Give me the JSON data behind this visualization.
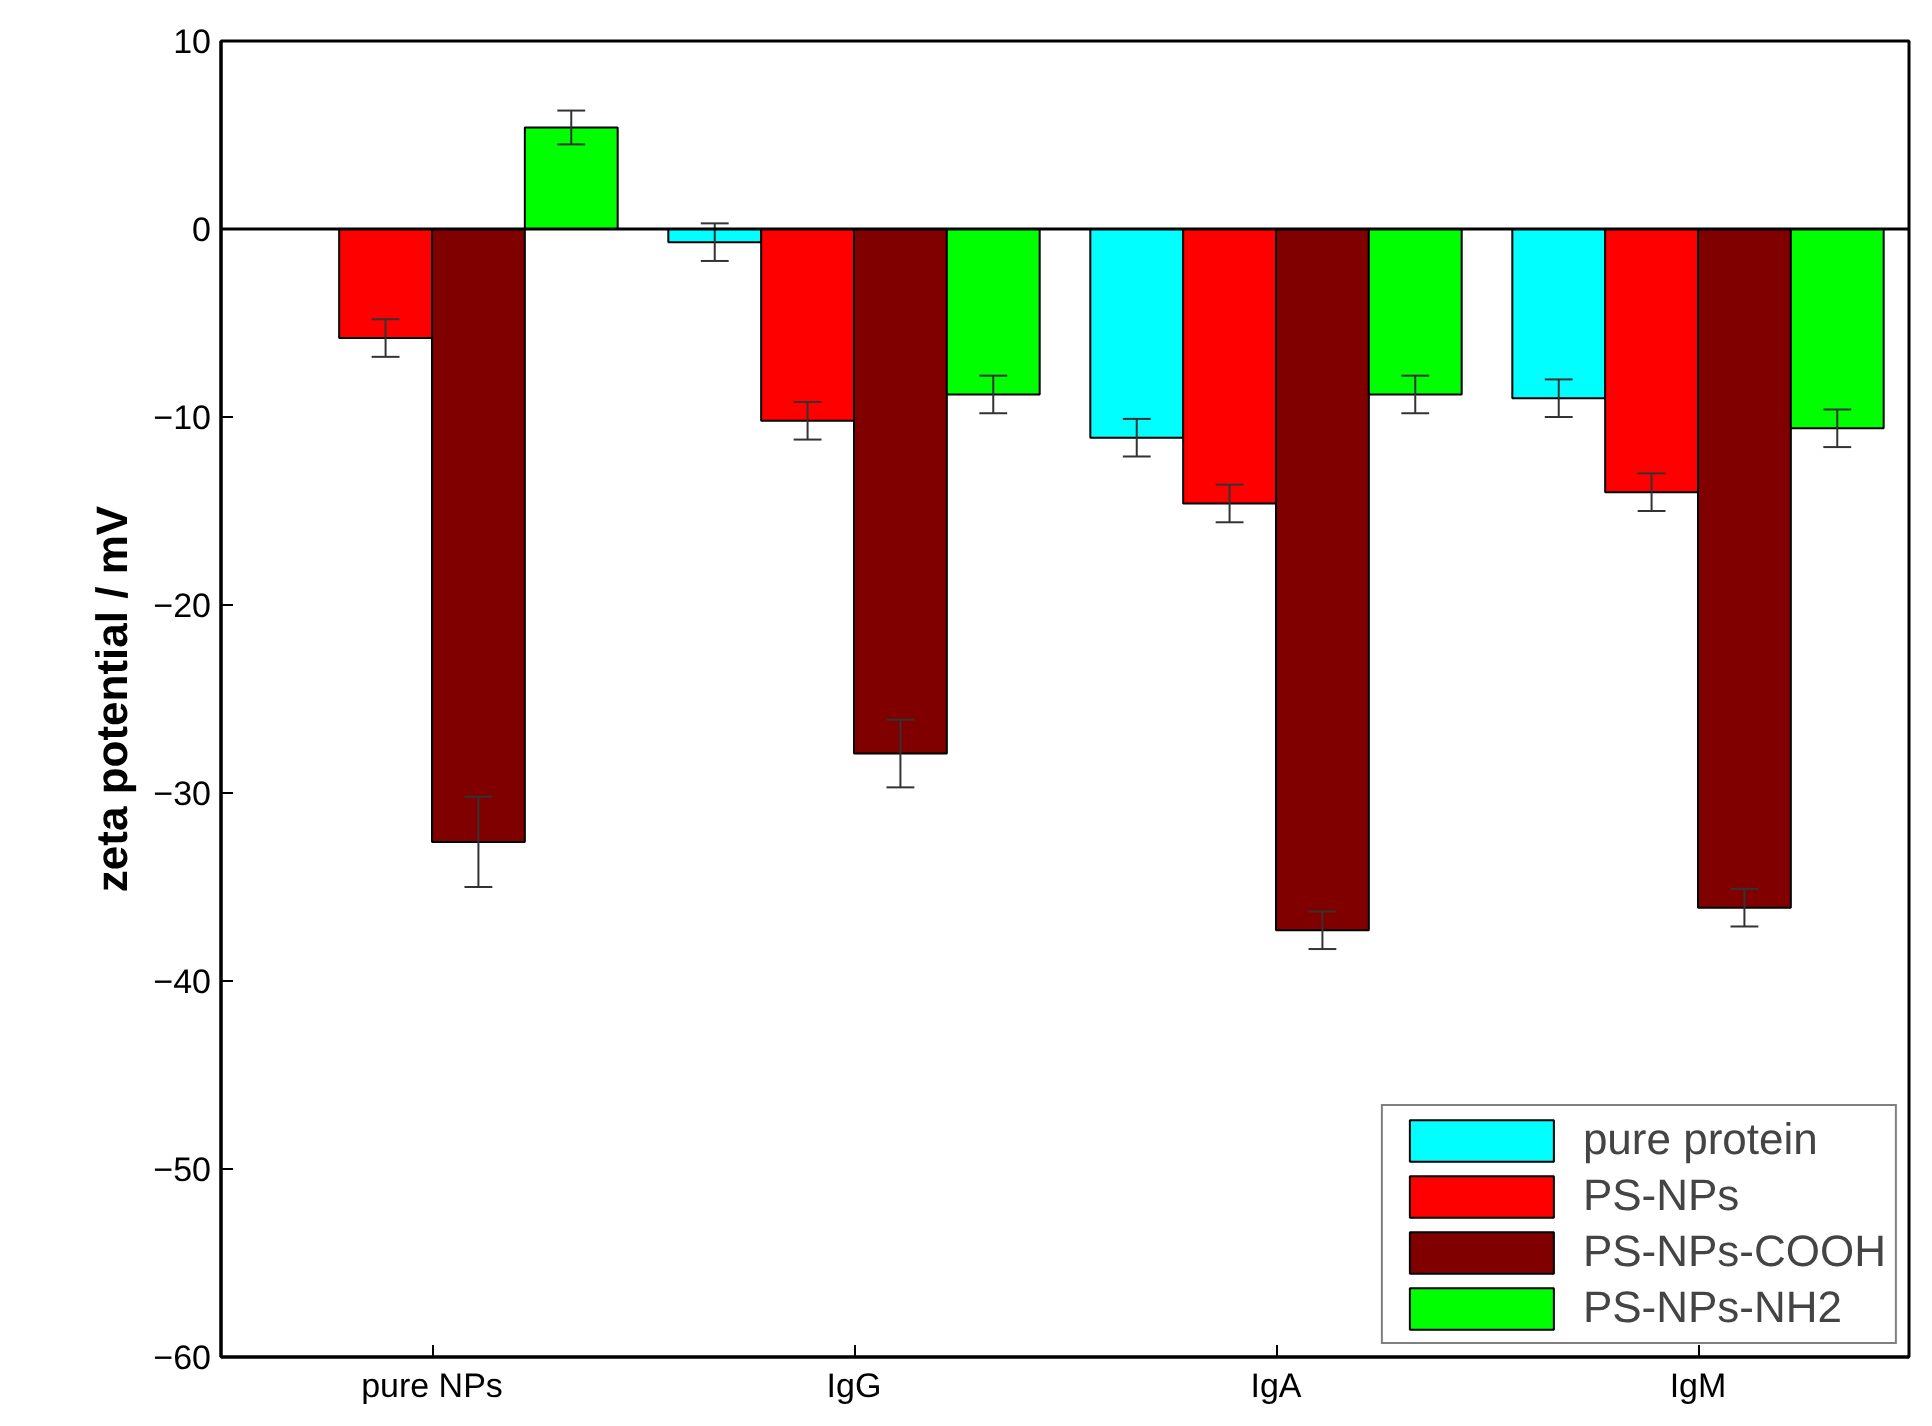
{
  "chart_data": {
    "type": "bar",
    "ylabel": "zeta potential / mV",
    "categories": [
      "pure NPs",
      "IgG",
      "IgA",
      "IgM"
    ],
    "series": [
      {
        "name": "pure protein",
        "color": "#00ffff",
        "values": [
          null,
          -0.7,
          -11.1,
          -9.0
        ],
        "errors": [
          null,
          1.0,
          1.0,
          1.0
        ]
      },
      {
        "name": "PS-NPs",
        "color": "#ff0000",
        "values": [
          -5.8,
          -10.2,
          -14.6,
          -14.0
        ],
        "errors": [
          1.0,
          1.0,
          1.0,
          1.0
        ]
      },
      {
        "name": "PS-NPs-COOH",
        "color": "#800000",
        "values": [
          -32.6,
          -27.9,
          -37.3,
          -36.1
        ],
        "errors": [
          2.4,
          1.8,
          1.0,
          1.0
        ]
      },
      {
        "name": "PS-NPs-NH2",
        "color": "#00ff00",
        "values": [
          5.4,
          -8.8,
          -8.8,
          -10.6
        ],
        "errors": [
          0.9,
          1.0,
          1.0,
          1.0
        ]
      }
    ],
    "ylim": [
      -60,
      10
    ],
    "yticks": [
      -60,
      -50,
      -40,
      -30,
      -20,
      -10,
      0,
      10
    ],
    "ref_lines": [
      {
        "axis": "y",
        "value": 0,
        "label": null,
        "color": "#000000"
      }
    ],
    "grid": false,
    "legend": "bottom right"
  }
}
